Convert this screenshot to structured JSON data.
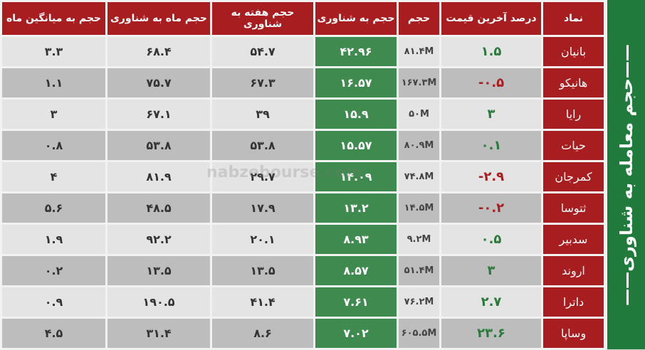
{
  "title": "——حجم معامله به شناوری——",
  "watermark": "nabzebourse.com",
  "headers": [
    "حجم به میانگین ماه",
    "حجم ماه به شناوری",
    "حجم هفته به شناوری",
    "حجم به شناوری",
    "حجم",
    "درصد آخرین قیمت",
    "نماد"
  ],
  "rows": [
    {
      "avg": "۳.۳",
      "month": "۶۸.۴",
      "week": "۵۴.۷",
      "float": "۴۲.۹۶",
      "vol": "۸۱.۴M",
      "pct": "۱.۵",
      "dir": "pos",
      "sym": "بانیان"
    },
    {
      "avg": "۱.۱",
      "month": "۷۵.۷",
      "week": "۶۷.۳",
      "float": "۱۶.۵۷",
      "vol": "۱۶۷.۳M",
      "pct": "-۰.۵",
      "dir": "neg",
      "sym": "هانیکو"
    },
    {
      "avg": "۳",
      "month": "۶۷.۱",
      "week": "۳۹",
      "float": "۱۵.۹",
      "vol": "۵۰M",
      "pct": "۳",
      "dir": "pos",
      "sym": "رایا"
    },
    {
      "avg": "۰.۸",
      "month": "۵۳.۸",
      "week": "۵۳.۸",
      "float": "۱۵.۵۷",
      "vol": "۸۰.۹M",
      "pct": "۰.۱",
      "dir": "pos",
      "sym": "حیات"
    },
    {
      "avg": "۴",
      "month": "۸۱.۹",
      "week": "۲۹.۷",
      "float": "۱۴.۰۹",
      "vol": "۷۴.۸M",
      "pct": "-۲.۹",
      "dir": "neg",
      "sym": "کمرجان"
    },
    {
      "avg": "۵.۶",
      "month": "۴۸.۵",
      "week": "۱۷.۹",
      "float": "۱۳.۲",
      "vol": "۱۴.۵M",
      "pct": "-۰.۲",
      "dir": "neg",
      "sym": "ثتوسا"
    },
    {
      "avg": "۱.۹",
      "month": "۹۲.۲",
      "week": "۲۰.۱",
      "float": "۸.۹۳",
      "vol": "۹.۲M",
      "pct": "۰.۵",
      "dir": "pos",
      "sym": "سدبیر"
    },
    {
      "avg": "۰.۲",
      "month": "۱۳.۵",
      "week": "۱۳.۵",
      "float": "۸.۵۷",
      "vol": "۵۱.۴M",
      "pct": "۳",
      "dir": "pos",
      "sym": "اروند"
    },
    {
      "avg": "۰.۹",
      "month": "۱۹۰.۵",
      "week": "۴۱.۴",
      "float": "۷.۶۱",
      "vol": "۷۶.۲M",
      "pct": "۲.۷",
      "dir": "pos",
      "sym": "داترا"
    },
    {
      "avg": "۴.۵",
      "month": "۳۱.۴",
      "week": "۸.۶",
      "float": "۷.۰۲",
      "vol": "۶۰۵.۵M",
      "pct": "۲۳.۶",
      "dir": "pos",
      "sym": "وساپا"
    }
  ]
}
